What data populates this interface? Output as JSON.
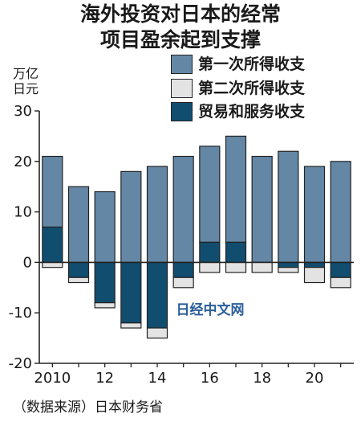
{
  "title_line1": "海外投资对日本的经常",
  "title_line2": "项目盈余起到支撑",
  "unit_line1": "万亿",
  "unit_line2": "日元",
  "source": "（数据来源）日本财务省",
  "watermark": "日经中文网",
  "colors": {
    "primary_income": "#6487a5",
    "secondary_income": "#e3e3e3",
    "trade_services": "#114d6e",
    "watermark": "#2a5d9a"
  },
  "chart_data": {
    "type": "bar",
    "stacked": true,
    "title": "海外投资对日本的经常项目盈余起到支撑",
    "ylabel": "万亿日元",
    "ylim": [
      -20,
      30
    ],
    "yticks": [
      -20,
      -10,
      0,
      10,
      20,
      30
    ],
    "categories": [
      2010,
      2011,
      2012,
      2013,
      2014,
      2015,
      2016,
      2017,
      2018,
      2019,
      2020,
      2021
    ],
    "xtick_labels": [
      {
        "year": 2010,
        "label": "2010"
      },
      {
        "year": 2012,
        "label": "12"
      },
      {
        "year": 2014,
        "label": "14"
      },
      {
        "year": 2016,
        "label": "16"
      },
      {
        "year": 2018,
        "label": "18"
      },
      {
        "year": 2020,
        "label": "20"
      }
    ],
    "legend": [
      "第一次所得收支",
      "第二次所得收支",
      "贸易和服务收支"
    ],
    "legend_position": "top-right",
    "series": [
      {
        "name": "第一次所得收支",
        "color_key": "primary_income",
        "values": [
          14,
          15,
          14,
          18,
          19,
          21,
          19,
          21,
          21,
          22,
          19,
          20
        ]
      },
      {
        "name": "第二次所得收支",
        "color_key": "secondary_income",
        "values": [
          -1,
          -1,
          -1,
          -1,
          -2,
          -2,
          -2,
          -2,
          -2,
          -1,
          -3,
          -2
        ]
      },
      {
        "name": "贸易和服务收支",
        "color_key": "trade_services",
        "values": [
          7,
          -3,
          -8,
          -12,
          -13,
          -3,
          4,
          4,
          0,
          -1,
          -1,
          -3
        ]
      }
    ]
  }
}
